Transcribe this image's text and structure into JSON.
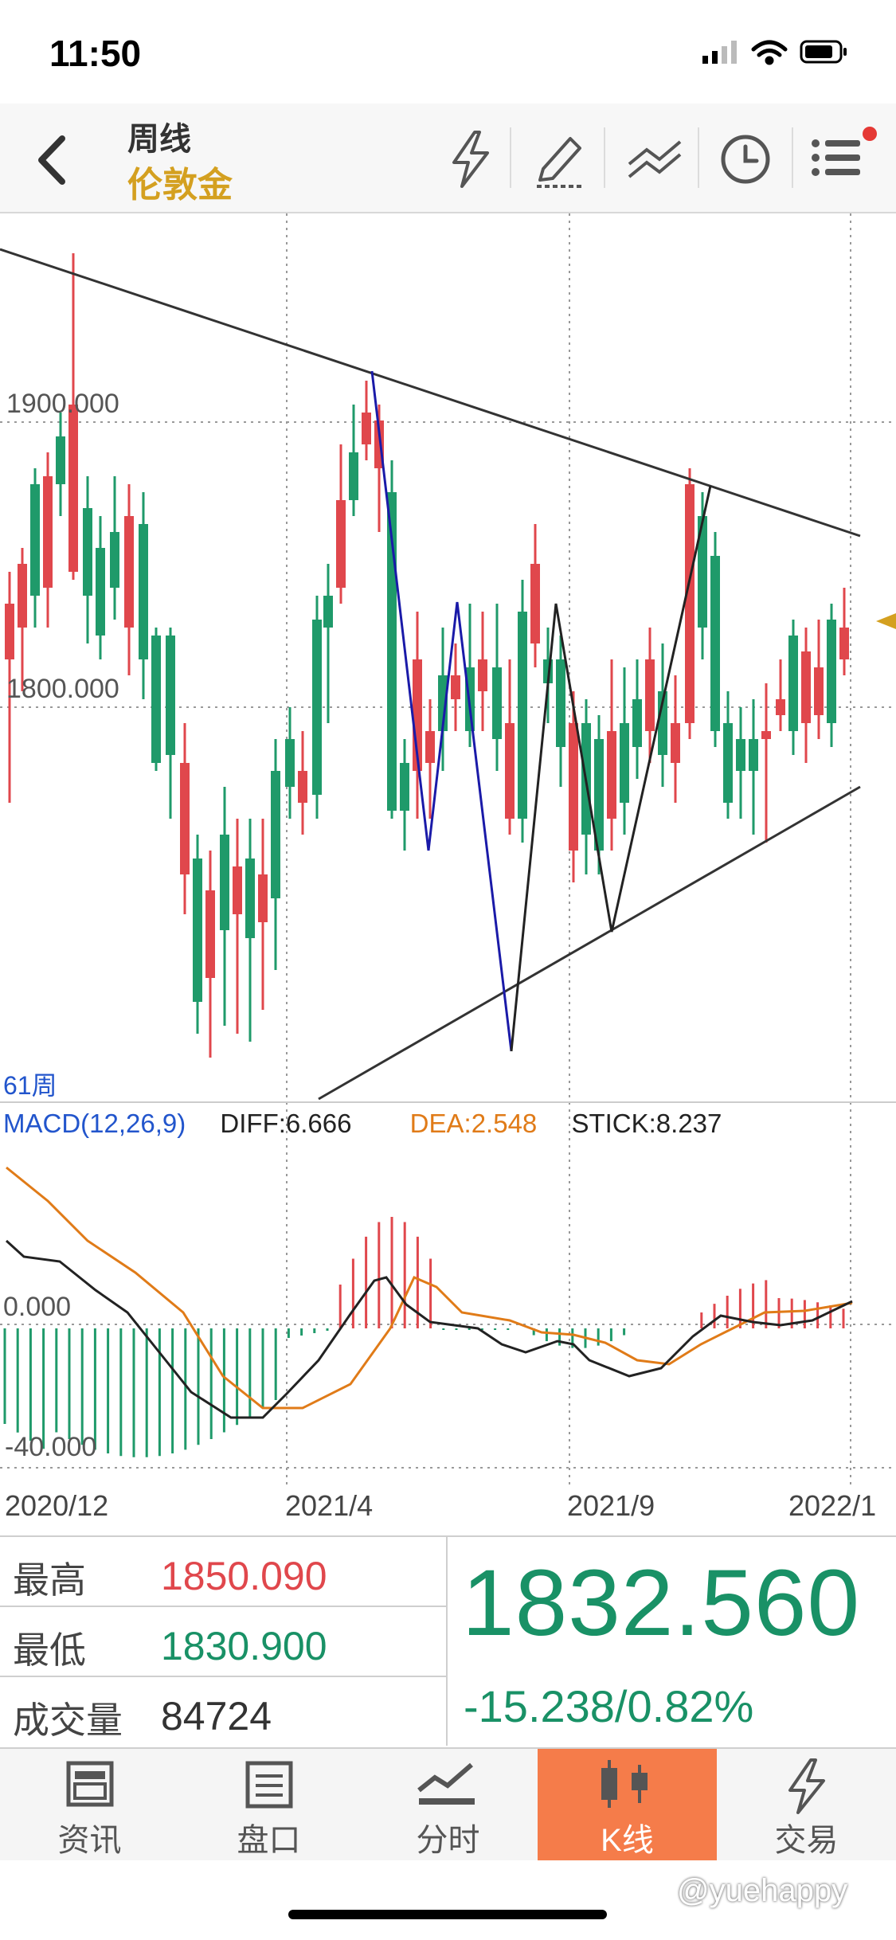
{
  "status_bar": {
    "time": "11:50"
  },
  "header": {
    "title": "周线",
    "subtitle": "伦敦金",
    "notification_dot_color": "#e53935",
    "icons": [
      "back-icon",
      "lightning-icon",
      "pen-icon",
      "draw-lines-icon",
      "clock-icon",
      "menu-icon"
    ]
  },
  "chart": {
    "price_labels": [
      "1900.000",
      "1800.000"
    ],
    "period_label": "61周",
    "macd": {
      "name": "MACD(12,26,9)",
      "diff": "DIFF:6.666",
      "dea": "DEA:2.548",
      "stick": "STICK:8.237",
      "zero_label": "0.000",
      "low_label": "-40.000"
    },
    "dates": [
      "2020/12",
      "2021/4",
      "2021/9",
      "2022/1"
    ],
    "colors": {
      "up": "#e0474c",
      "down": "#1f9a6a",
      "dea": "#e07b18",
      "diff": "#222222",
      "macd_name": "#2255cc"
    }
  },
  "chart_data": {
    "type": "candlestick",
    "title": "伦敦金 周线",
    "ylim": [
      1680,
      1965
    ],
    "y_ticks": [
      1900,
      1800
    ],
    "x_ticks": [
      "2020/12",
      "2021/4",
      "2021/9",
      "2022/1"
    ],
    "last": {
      "high": 1850.09,
      "low": 1830.9,
      "close": 1832.56
    },
    "macd": {
      "diff": 6.666,
      "dea": 2.548,
      "stick": 8.237,
      "y_ticks": [
        0,
        -40
      ]
    }
  },
  "info": {
    "high_label": "最高",
    "high_value": "1850.090",
    "low_label": "最低",
    "low_value": "1830.900",
    "volume_label": "成交量",
    "volume_value": "84724",
    "price": "1832.560",
    "change": "-15.238/0.82%"
  },
  "tabs": [
    {
      "label": "资讯",
      "icon": "news-icon"
    },
    {
      "label": "盘口",
      "icon": "orderbook-icon"
    },
    {
      "label": "分时",
      "icon": "intraday-icon"
    },
    {
      "label": "K线",
      "icon": "candlestick-icon"
    },
    {
      "label": "交易",
      "icon": "trade-icon"
    }
  ],
  "watermark": "@yuehappy"
}
